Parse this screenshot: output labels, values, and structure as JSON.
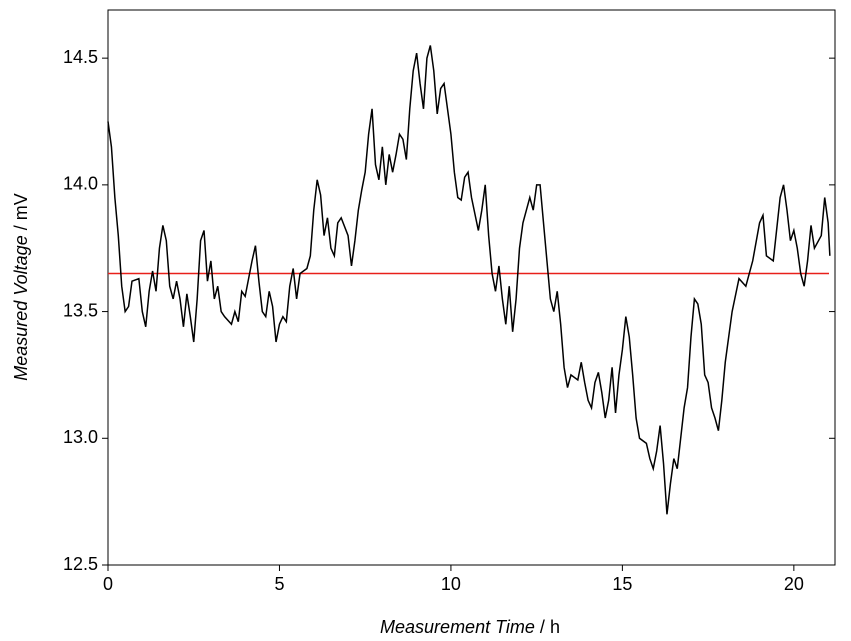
{
  "chart_data": {
    "type": "line",
    "xlabel": {
      "quantity": "Measurement Time",
      "separator": " / ",
      "unit": "h"
    },
    "ylabel": {
      "quantity": "Measured Voltage",
      "separator": " / ",
      "unit": "mV"
    },
    "xlim": [
      0,
      21.2
    ],
    "ylim": [
      12.5,
      14.69
    ],
    "xticks": [
      0,
      5,
      10,
      15,
      20
    ],
    "yticks": [
      12.5,
      {
        "value": 13,
        "label": "13.0"
      },
      13.5,
      {
        "value": 14,
        "label": "14.0"
      },
      14.5
    ],
    "x": [
      0,
      0.1,
      0.2,
      0.3,
      0.4,
      0.5,
      0.6,
      0.7,
      0.9,
      1.0,
      1.1,
      1.2,
      1.3,
      1.4,
      1.5,
      1.6,
      1.7,
      1.8,
      1.9,
      2.0,
      2.1,
      2.2,
      2.3,
      2.4,
      2.5,
      2.6,
      2.7,
      2.8,
      2.9,
      3.0,
      3.1,
      3.2,
      3.3,
      3.4,
      3.6,
      3.7,
      3.8,
      3.9,
      4.0,
      4.2,
      4.3,
      4.4,
      4.5,
      4.6,
      4.7,
      4.8,
      4.9,
      5.0,
      5.1,
      5.2,
      5.3,
      5.4,
      5.5,
      5.6,
      5.8,
      5.9,
      6.0,
      6.1,
      6.2,
      6.3,
      6.4,
      6.5,
      6.6,
      6.7,
      6.8,
      7.0,
      7.1,
      7.2,
      7.3,
      7.4,
      7.5,
      7.6,
      7.7,
      7.8,
      7.9,
      8.0,
      8.1,
      8.2,
      8.3,
      8.4,
      8.5,
      8.6,
      8.7,
      8.8,
      8.9,
      9.0,
      9.1,
      9.2,
      9.3,
      9.4,
      9.5,
      9.6,
      9.7,
      9.8,
      9.9,
      10.0,
      10.1,
      10.2,
      10.3,
      10.4,
      10.5,
      10.6,
      10.8,
      10.9,
      11.0,
      11.1,
      11.2,
      11.3,
      11.4,
      11.5,
      11.6,
      11.7,
      11.8,
      11.9,
      12.0,
      12.1,
      12.2,
      12.3,
      12.4,
      12.5,
      12.6,
      12.7,
      12.8,
      12.9,
      13.0,
      13.1,
      13.2,
      13.3,
      13.4,
      13.5,
      13.7,
      13.8,
      13.9,
      14.0,
      14.1,
      14.2,
      14.3,
      14.4,
      14.5,
      14.6,
      14.7,
      14.8,
      14.9,
      15.0,
      15.1,
      15.2,
      15.3,
      15.4,
      15.5,
      15.7,
      15.8,
      15.9,
      16.0,
      16.1,
      16.2,
      16.3,
      16.4,
      16.5,
      16.6,
      16.7,
      16.8,
      16.9,
      17.0,
      17.1,
      17.2,
      17.3,
      17.4,
      17.5,
      17.6,
      17.7,
      17.8,
      17.9,
      18.0,
      18.2,
      18.4,
      18.6,
      18.8,
      19.0,
      19.1,
      19.2,
      19.4,
      19.6,
      19.7,
      19.8,
      19.9,
      20.0,
      20.1,
      20.2,
      20.3,
      20.4,
      20.5,
      20.6,
      20.8,
      20.9,
      21.0,
      21.05
    ],
    "series": [
      {
        "color": "#000000",
        "values": [
          14.25,
          14.15,
          13.95,
          13.8,
          13.6,
          13.5,
          13.52,
          13.62,
          13.63,
          13.5,
          13.44,
          13.58,
          13.66,
          13.58,
          13.75,
          13.84,
          13.78,
          13.6,
          13.55,
          13.62,
          13.55,
          13.44,
          13.57,
          13.48,
          13.38,
          13.55,
          13.78,
          13.82,
          13.62,
          13.7,
          13.55,
          13.6,
          13.5,
          13.48,
          13.45,
          13.5,
          13.46,
          13.58,
          13.56,
          13.7,
          13.76,
          13.62,
          13.5,
          13.48,
          13.58,
          13.52,
          13.38,
          13.45,
          13.48,
          13.46,
          13.6,
          13.67,
          13.55,
          13.65,
          13.67,
          13.72,
          13.9,
          14.02,
          13.96,
          13.8,
          13.87,
          13.75,
          13.72,
          13.85,
          13.87,
          13.8,
          13.68,
          13.78,
          13.9,
          13.98,
          14.05,
          14.2,
          14.3,
          14.08,
          14.02,
          14.15,
          14.0,
          14.12,
          14.05,
          14.12,
          14.2,
          14.18,
          14.1,
          14.3,
          14.45,
          14.52,
          14.4,
          14.3,
          14.5,
          14.55,
          14.45,
          14.28,
          14.38,
          14.4,
          14.3,
          14.2,
          14.05,
          13.95,
          13.94,
          14.03,
          14.05,
          13.95,
          13.82,
          13.9,
          14.0,
          13.8,
          13.65,
          13.58,
          13.68,
          13.55,
          13.45,
          13.6,
          13.42,
          13.55,
          13.75,
          13.85,
          13.9,
          13.95,
          13.9,
          14.0,
          14.0,
          13.85,
          13.7,
          13.55,
          13.5,
          13.58,
          13.45,
          13.28,
          13.2,
          13.25,
          13.23,
          13.3,
          13.22,
          13.15,
          13.12,
          13.22,
          13.26,
          13.18,
          13.08,
          13.15,
          13.28,
          13.1,
          13.25,
          13.35,
          13.48,
          13.4,
          13.25,
          13.08,
          13.0,
          12.98,
          12.92,
          12.88,
          12.95,
          13.05,
          12.9,
          12.7,
          12.82,
          12.92,
          12.88,
          13.0,
          13.12,
          13.2,
          13.4,
          13.55,
          13.53,
          13.45,
          13.25,
          13.22,
          13.12,
          13.08,
          13.03,
          13.15,
          13.3,
          13.5,
          13.63,
          13.6,
          13.7,
          13.85,
          13.88,
          13.72,
          13.7,
          13.95,
          14.0,
          13.9,
          13.78,
          13.82,
          13.75,
          13.65,
          13.6,
          13.7,
          13.84,
          13.75,
          13.8,
          13.95,
          13.85,
          13.72
        ]
      }
    ],
    "hlines": [
      {
        "value": 13.65,
        "color": "#e8201a"
      }
    ]
  }
}
